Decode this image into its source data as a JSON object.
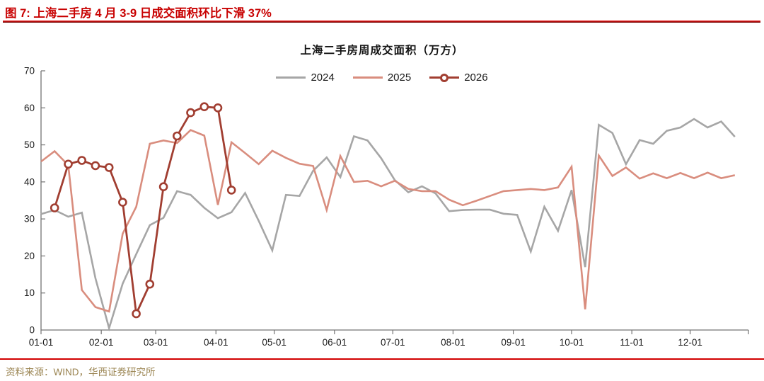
{
  "header": {
    "title": "图 7: 上海二手房 4 月 3-9 日成交面积环比下滑 37%"
  },
  "chart_data": {
    "type": "line",
    "title": "上海二手房周成交面积（万方）",
    "xlabel": "",
    "ylabel": "",
    "ylim": [
      0,
      70
    ],
    "y_ticks": [
      0,
      10,
      20,
      30,
      40,
      50,
      60,
      70
    ],
    "x_tick_labels": [
      "01-01",
      "02-01",
      "03-01",
      "04-01",
      "05-01",
      "06-01",
      "07-01",
      "08-01",
      "09-01",
      "10-01",
      "11-01",
      "12-01"
    ],
    "x_unit": "weekly points, calendar year Jan–Dec",
    "grid": false,
    "legend_position": "top-center",
    "axis_color": "#737373",
    "series": [
      {
        "name": "2024",
        "color": "#a6a6a6",
        "marker": "none",
        "start_week": 0,
        "values": [
          31.3,
          32.4,
          30.6,
          31.7,
          14,
          0.5,
          12.5,
          20.5,
          28.3,
          30.3,
          37.5,
          36.5,
          33,
          30.2,
          31.8,
          37,
          29.5,
          21.5,
          36.5,
          36.2,
          43,
          46.6,
          41.3,
          52.3,
          51.2,
          46.4,
          40.5,
          37.2,
          38.8,
          36.9,
          32.1,
          32.4,
          32.5,
          32.5,
          31.4,
          31.1,
          21.2,
          33.3,
          26.8,
          37.8,
          17,
          55.4,
          53.2,
          44.8,
          51.3,
          50.3,
          53.8,
          54.7,
          57,
          54.7,
          56.3,
          52.2
        ]
      },
      {
        "name": "2025",
        "color": "#d98d7e",
        "marker": "none",
        "start_week": 0,
        "values": [
          45.5,
          48.3,
          44.5,
          10.8,
          6.2,
          5,
          26,
          33.3,
          50.3,
          51.2,
          50.5,
          54,
          52.5,
          33.8,
          50.7,
          47.8,
          44.8,
          48.4,
          46.5,
          44.9,
          44.3,
          32.4,
          47,
          40,
          40.3,
          38.8,
          40.3,
          38.1,
          37.5,
          37.5,
          35.2,
          33.7,
          34.9,
          36.2,
          37.5,
          37.8,
          38.1,
          37.8,
          38.5,
          44.1,
          5.6,
          47.1,
          41.6,
          43.9,
          40.9,
          42.3,
          41,
          42.4,
          41,
          42.5,
          41,
          41.8
        ]
      },
      {
        "name": "2026",
        "color": "#a13e31",
        "marker": "circle-open",
        "start_week": 1,
        "values": [
          33,
          44.8,
          45.8,
          44.4,
          43.9,
          34.5,
          4.4,
          12.4,
          38.7,
          52.4,
          58.7,
          60.3,
          60,
          37.8
        ]
      }
    ]
  },
  "footer": {
    "source": "资料来源：WIND，华西证券研究所"
  }
}
